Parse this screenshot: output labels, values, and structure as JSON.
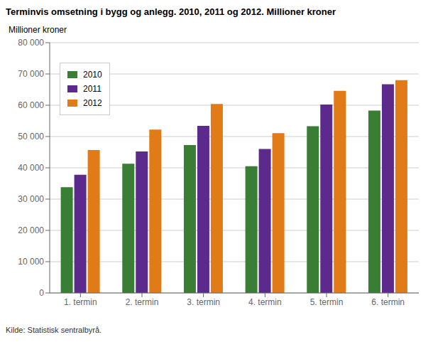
{
  "chart_data": {
    "type": "bar",
    "title": "Terminvis omsetning i bygg og anlegg. 2010, 2011 og 2012. Millioner kroner",
    "ylabel": "Millioner kroner",
    "annotations": [
      "Kilde: Statistisk sentralbyrå."
    ],
    "categories": [
      "1. termin",
      "2. termin",
      "3. termin",
      "4. termin",
      "5. termin",
      "6. termin"
    ],
    "series": [
      {
        "name": "2010",
        "color": "#3a7d34",
        "values": [
          33800,
          41300,
          47300,
          40500,
          53300,
          58300
        ]
      },
      {
        "name": "2011",
        "color": "#5b2a8c",
        "values": [
          37800,
          45200,
          53400,
          46000,
          60200,
          66700
        ]
      },
      {
        "name": "2012",
        "color": "#e07b18",
        "values": [
          45700,
          52200,
          60400,
          51100,
          64600,
          68000
        ]
      }
    ],
    "ylim": [
      0,
      80000
    ],
    "yticks": [
      0,
      {
        "value": 10000,
        "label": "10 000"
      },
      {
        "value": 20000,
        "label": "20 000"
      },
      {
        "value": 30000,
        "label": "30 000"
      },
      {
        "value": 40000,
        "label": "40 000"
      },
      {
        "value": 50000,
        "label": "50 000"
      },
      {
        "value": 60000,
        "label": "60 000"
      },
      {
        "value": 70000,
        "label": "70 000"
      },
      {
        "value": 80000,
        "label": "80 000"
      }
    ],
    "grid": true,
    "legend": "upper left"
  }
}
